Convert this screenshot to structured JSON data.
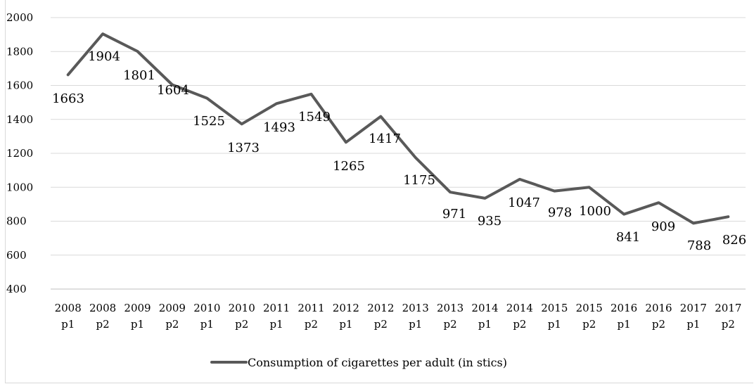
{
  "chart_data": {
    "type": "line",
    "categories": [
      [
        "2008",
        "p1"
      ],
      [
        "2008",
        "p2"
      ],
      [
        "2009",
        "p1"
      ],
      [
        "2009",
        "p2"
      ],
      [
        "2010",
        "p1"
      ],
      [
        "2010",
        "p2"
      ],
      [
        "2011",
        "p1"
      ],
      [
        "2011",
        "p2"
      ],
      [
        "2012",
        "p1"
      ],
      [
        "2012",
        "p2"
      ],
      [
        "2013",
        "p1"
      ],
      [
        "2013",
        "p2"
      ],
      [
        "2014",
        "p1"
      ],
      [
        "2014",
        "p2"
      ],
      [
        "2015",
        "p1"
      ],
      [
        "2015",
        "p2"
      ],
      [
        "2016",
        "p1"
      ],
      [
        "2016",
        "p2"
      ],
      [
        "2017",
        "p1"
      ],
      [
        "2017",
        "p2"
      ]
    ],
    "series": [
      {
        "name": "Consumption of cigarettes per adult (in stics)",
        "color": "#595959",
        "values": [
          1663,
          1904,
          1801,
          1604,
          1525,
          1373,
          1493,
          1549,
          1265,
          1417,
          1175,
          971,
          935,
          1047,
          978,
          1000,
          841,
          909,
          788,
          826
        ]
      }
    ],
    "ylim": [
      400,
      2000
    ],
    "yticks": [
      400,
      600,
      800,
      1000,
      1200,
      1400,
      1600,
      1800,
      2000
    ],
    "grid": true,
    "legend": "bottom",
    "title": "",
    "xlabel": "",
    "ylabel": ""
  }
}
